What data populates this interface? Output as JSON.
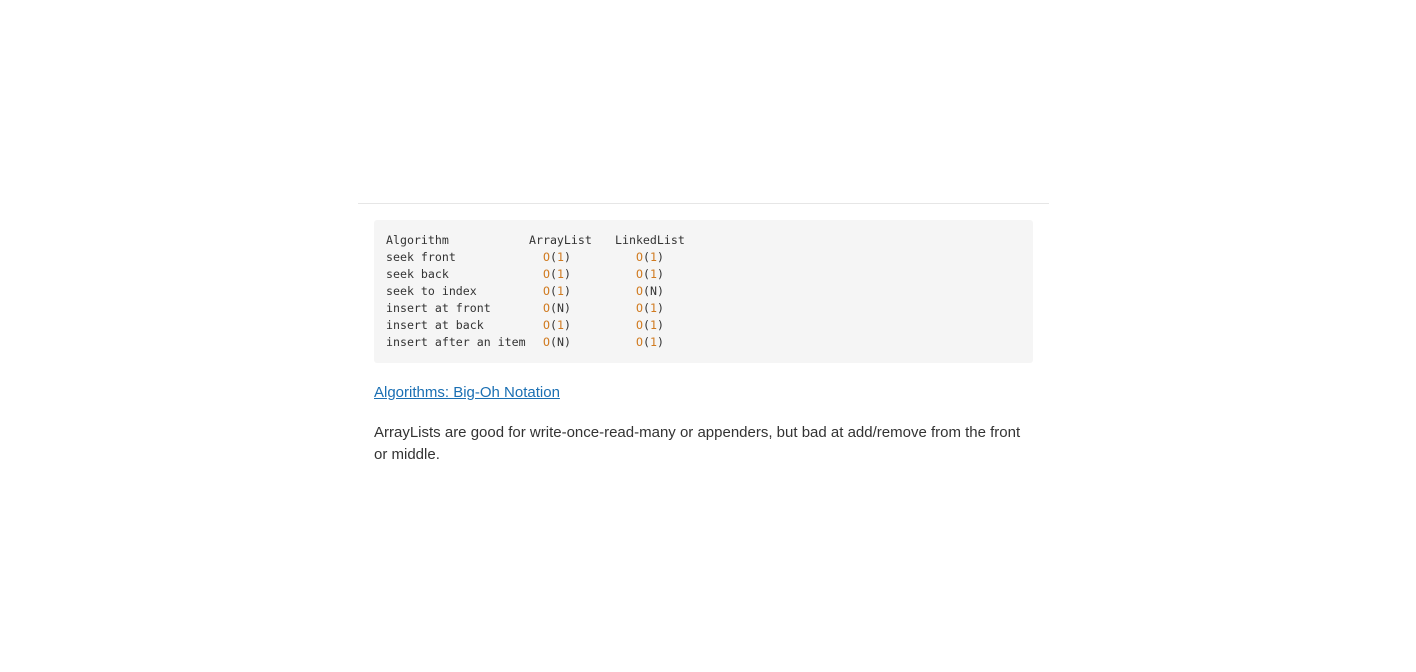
{
  "complexity_table": {
    "header": {
      "algorithm": "Algorithm",
      "arraylist": "ArrayList",
      "linkedlist": "LinkedList"
    },
    "rows": [
      {
        "algorithm": "seek front",
        "arraylist": "1",
        "linkedlist": "1"
      },
      {
        "algorithm": "seek back",
        "arraylist": "1",
        "linkedlist": "1"
      },
      {
        "algorithm": "seek to index",
        "arraylist": "1",
        "linkedlist": "N"
      },
      {
        "algorithm": "insert at front",
        "arraylist": "N",
        "linkedlist": "1"
      },
      {
        "algorithm": "insert at back",
        "arraylist": "1",
        "linkedlist": "1"
      },
      {
        "algorithm": "insert after an item",
        "arraylist": "N",
        "linkedlist": "1"
      }
    ]
  },
  "link": {
    "label": "Algorithms: Big-Oh Notation"
  },
  "paragraph": {
    "text": "ArrayLists are good for write-once-read-many or appenders, but bad at add/remove from the front or middle."
  },
  "colors": {
    "link": "#1a6fb3",
    "highlight": "#d07a1f",
    "code_bg": "#f5f5f5",
    "text": "#333333"
  }
}
